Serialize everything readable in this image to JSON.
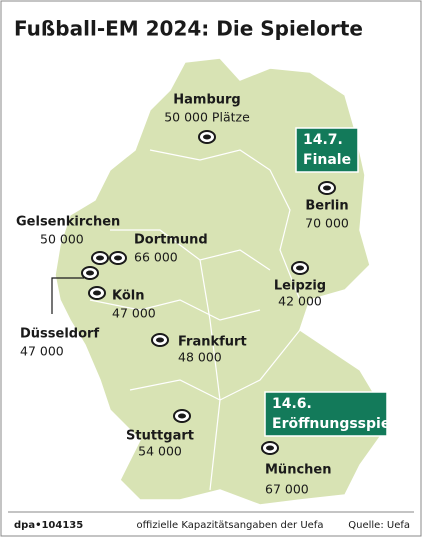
{
  "header": {
    "title": "Fußball-EM 2024: Die Spielorte"
  },
  "cities": [
    {
      "name": "Hamburg",
      "capacity": "50 000 Plätze"
    },
    {
      "name": "Berlin",
      "capacity": "70 000"
    },
    {
      "name": "Gelsenkirchen",
      "capacity": "50 000"
    },
    {
      "name": "Dortmund",
      "capacity": "66 000"
    },
    {
      "name": "Köln",
      "capacity": "47 000"
    },
    {
      "name": "Düsseldorf",
      "capacity": "47 000"
    },
    {
      "name": "Leipzig",
      "capacity": "42 000"
    },
    {
      "name": "Frankfurt",
      "capacity": "48 000"
    },
    {
      "name": "Stuttgart",
      "capacity": "54 000"
    },
    {
      "name": "München",
      "capacity": "67 000"
    }
  ],
  "badges": [
    {
      "date": "14.7.",
      "label": "Finale"
    },
    {
      "date": "14.6.",
      "label": "Eröffnungsspiel"
    }
  ],
  "footer": {
    "id": "dpa•104135",
    "note": "offizielle Kapazitätsangaben der Uefa",
    "source": "Quelle: Uefa"
  }
}
